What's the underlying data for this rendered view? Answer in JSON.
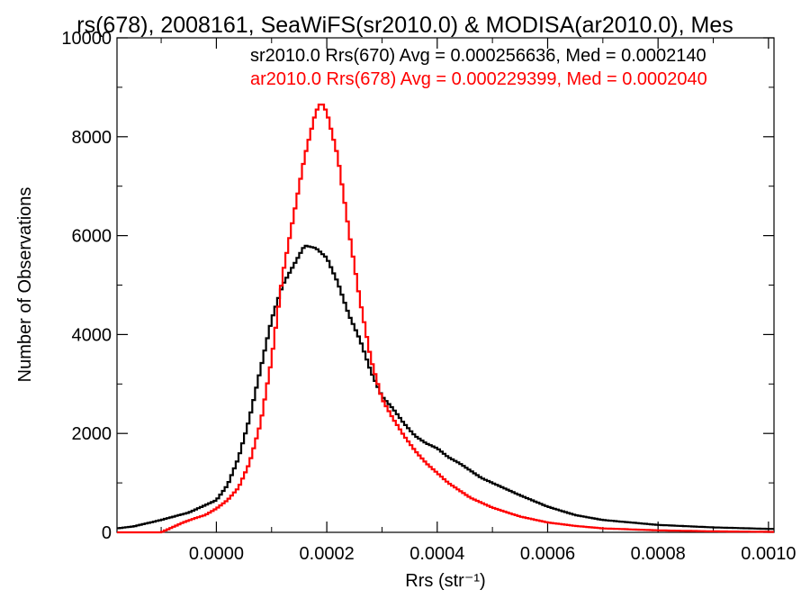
{
  "chart_data": {
    "type": "line",
    "title": "rs(678), 2008161, SeaWiFS(sr2010.0) & MODISA(ar2010.0), Mes",
    "xlabel": "Rrs (str⁻¹)",
    "ylabel": "Number of Observations",
    "xlim": [
      -0.00018,
      0.00101
    ],
    "ylim": [
      0,
      10000
    ],
    "x_ticks": [
      0.0,
      0.0002,
      0.0004,
      0.0006,
      0.0008,
      0.001
    ],
    "x_tick_labels": [
      "0.0000",
      "0.0002",
      "0.0004",
      "0.0006",
      "0.0008",
      "0.0010"
    ],
    "y_ticks": [
      0,
      2000,
      4000,
      6000,
      8000,
      10000
    ],
    "y_tick_labels": [
      "0",
      "2000",
      "4000",
      "6000",
      "8000",
      "10000"
    ],
    "grid": false,
    "legend_placement": "top-right",
    "series": [
      {
        "name": "sr2010.0 Rrs(670) Avg = 0.000256636, Med = 0.0002140",
        "color": "#000000",
        "x": [
          -0.00018,
          -0.00015,
          -0.0001,
          -5e-05,
          0.0,
          2e-05,
          4e-05,
          6e-05,
          8e-05,
          0.0001,
          0.00012,
          0.00014,
          0.00016,
          0.00018,
          0.0002,
          0.00022,
          0.00024,
          0.00026,
          0.00028,
          0.0003,
          0.00032,
          0.00034,
          0.00036,
          0.00038,
          0.0004,
          0.00042,
          0.00044,
          0.00046,
          0.00048,
          0.0005,
          0.00055,
          0.0006,
          0.00065,
          0.0007,
          0.0008,
          0.0009,
          0.001
        ],
        "y": [
          80,
          120,
          250,
          400,
          650,
          950,
          1500,
          2300,
          3300,
          4300,
          5000,
          5400,
          5800,
          5750,
          5550,
          5050,
          4400,
          3900,
          3250,
          2750,
          2500,
          2200,
          1950,
          1800,
          1700,
          1520,
          1400,
          1250,
          1100,
          1000,
          750,
          520,
          350,
          250,
          150,
          100,
          70
        ]
      },
      {
        "name": "ar2010.0 Rrs(678) Avg = 0.000229399, Med = 0.0002040",
        "color": "#ff0000",
        "x": [
          -0.00018,
          -0.0001,
          -8e-05,
          -6e-05,
          -4e-05,
          -2e-05,
          0.0,
          2e-05,
          4e-05,
          6e-05,
          8e-05,
          0.0001,
          0.00012,
          0.00014,
          0.00016,
          0.00018,
          0.00019,
          0.0002,
          0.00022,
          0.00024,
          0.00026,
          0.00028,
          0.0003,
          0.00032,
          0.00034,
          0.00036,
          0.00038,
          0.0004,
          0.00042,
          0.00044,
          0.00046,
          0.00048,
          0.0005,
          0.00055,
          0.0006,
          0.00065,
          0.0007,
          0.0008,
          0.0009,
          0.001
        ],
        "y": [
          0,
          0,
          100,
          200,
          280,
          350,
          480,
          650,
          900,
          1400,
          2200,
          3500,
          5200,
          6400,
          7600,
          8500,
          8700,
          8500,
          7600,
          6100,
          4700,
          3500,
          2700,
          2300,
          1950,
          1650,
          1400,
          1200,
          1000,
          850,
          700,
          600,
          500,
          320,
          200,
          130,
          80,
          40,
          20,
          10
        ]
      }
    ]
  }
}
